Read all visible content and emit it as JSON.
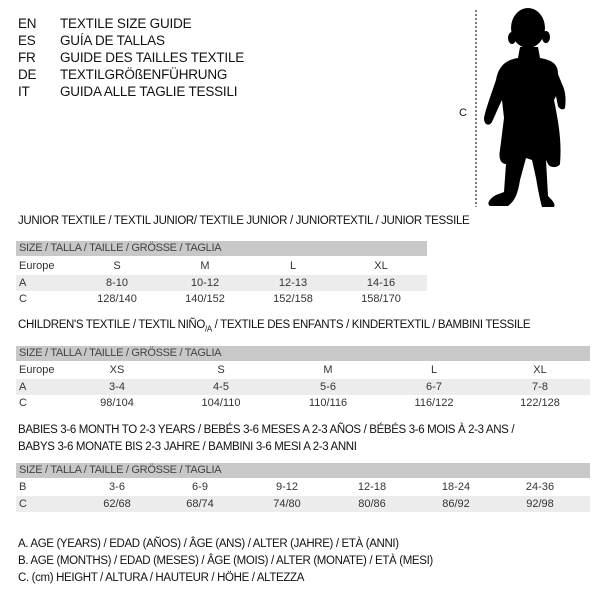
{
  "languages": [
    {
      "code": "EN",
      "text": "TEXTILE SIZE GUIDE"
    },
    {
      "code": "ES",
      "text": "GUÍA DE TALLAS"
    },
    {
      "code": "FR",
      "text": "GUIDE DES TAILLES TEXTILE"
    },
    {
      "code": "DE",
      "text": "TEXTILGRÖßENFÜHRUNG"
    },
    {
      "code": "IT",
      "text": "GUIDA ALLE TAGLIE TESSILI"
    }
  ],
  "figure": {
    "measure_label": "C",
    "icon": "baby-silhouette"
  },
  "junior": {
    "title": "JUNIOR TEXTILE / TEXTIL JUNIOR/ TEXTILE JUNIOR / JUNIORTEXTIL / JUNIOR TESSILE",
    "header": "SIZE / TALLA / TAILLE / GRÖSSE / TAGLIA",
    "rows": [
      {
        "label": "Europe",
        "values": [
          "S",
          "M",
          "L",
          "XL"
        ]
      },
      {
        "label": "A",
        "values": [
          "8-10",
          "10-12",
          "12-13",
          "14-16"
        ]
      },
      {
        "label": "C",
        "values": [
          "128/140",
          "140/152",
          "152/158",
          "158/170"
        ]
      }
    ]
  },
  "children": {
    "title_pre": "CHILDREN'S TEXTILE / TEXTIL NIÑO",
    "title_sub": "/A",
    "title_post": " / TEXTILE DES ENFANTS / KINDERTEXTIL / BAMBINI TESSILE",
    "header": "SIZE / TALLA / TAILLE / GRÖSSE / TAGLIA",
    "rows": [
      {
        "label": "Europe",
        "values": [
          "XS",
          "S",
          "M",
          "L",
          "XL"
        ]
      },
      {
        "label": "A",
        "values": [
          "3-4",
          "4-5",
          "5-6",
          "6-7",
          "7-8"
        ]
      },
      {
        "label": "C",
        "values": [
          "98/104",
          "104/110",
          "110/116",
          "116/122",
          "122/128"
        ]
      }
    ]
  },
  "babies": {
    "title_line1": "BABIES 3-6 MONTH TO 2-3 YEARS / BEBÉS 3-6 MESES A 2-3 AÑOS / BÉBÉS 3-6 MOIS À 2-3 ANS /",
    "title_line2": "BABYS 3-6 MONATE BIS 2-3 JAHRE / BAMBINI 3-6 MESI A 2-3 ANNI",
    "header": "SIZE / TALLA / TAILLE / GRÖSSE / TAGLIA",
    "rows": [
      {
        "label": "B",
        "values": [
          "3-6",
          "6-9",
          "9-12",
          "12-18",
          "18-24",
          "24-36"
        ]
      },
      {
        "label": "C",
        "values": [
          "62/68",
          "68/74",
          "74/80",
          "80/86",
          "86/92",
          "92/98"
        ]
      }
    ]
  },
  "legend": [
    "A. AGE (YEARS) / EDAD (AÑOS) / ÂGE (ANS) / ALTER (JAHRE) / ETÀ (ANNI)",
    "B. AGE (MONTHS) / EDAD (MESES) / ÂGE (MOIS) / ALTER (MONATE) / ETÀ (MESI)",
    "C. (cm) HEIGHT / ALTURA / HAUTEUR / HÖHE / ALTEZZA"
  ]
}
